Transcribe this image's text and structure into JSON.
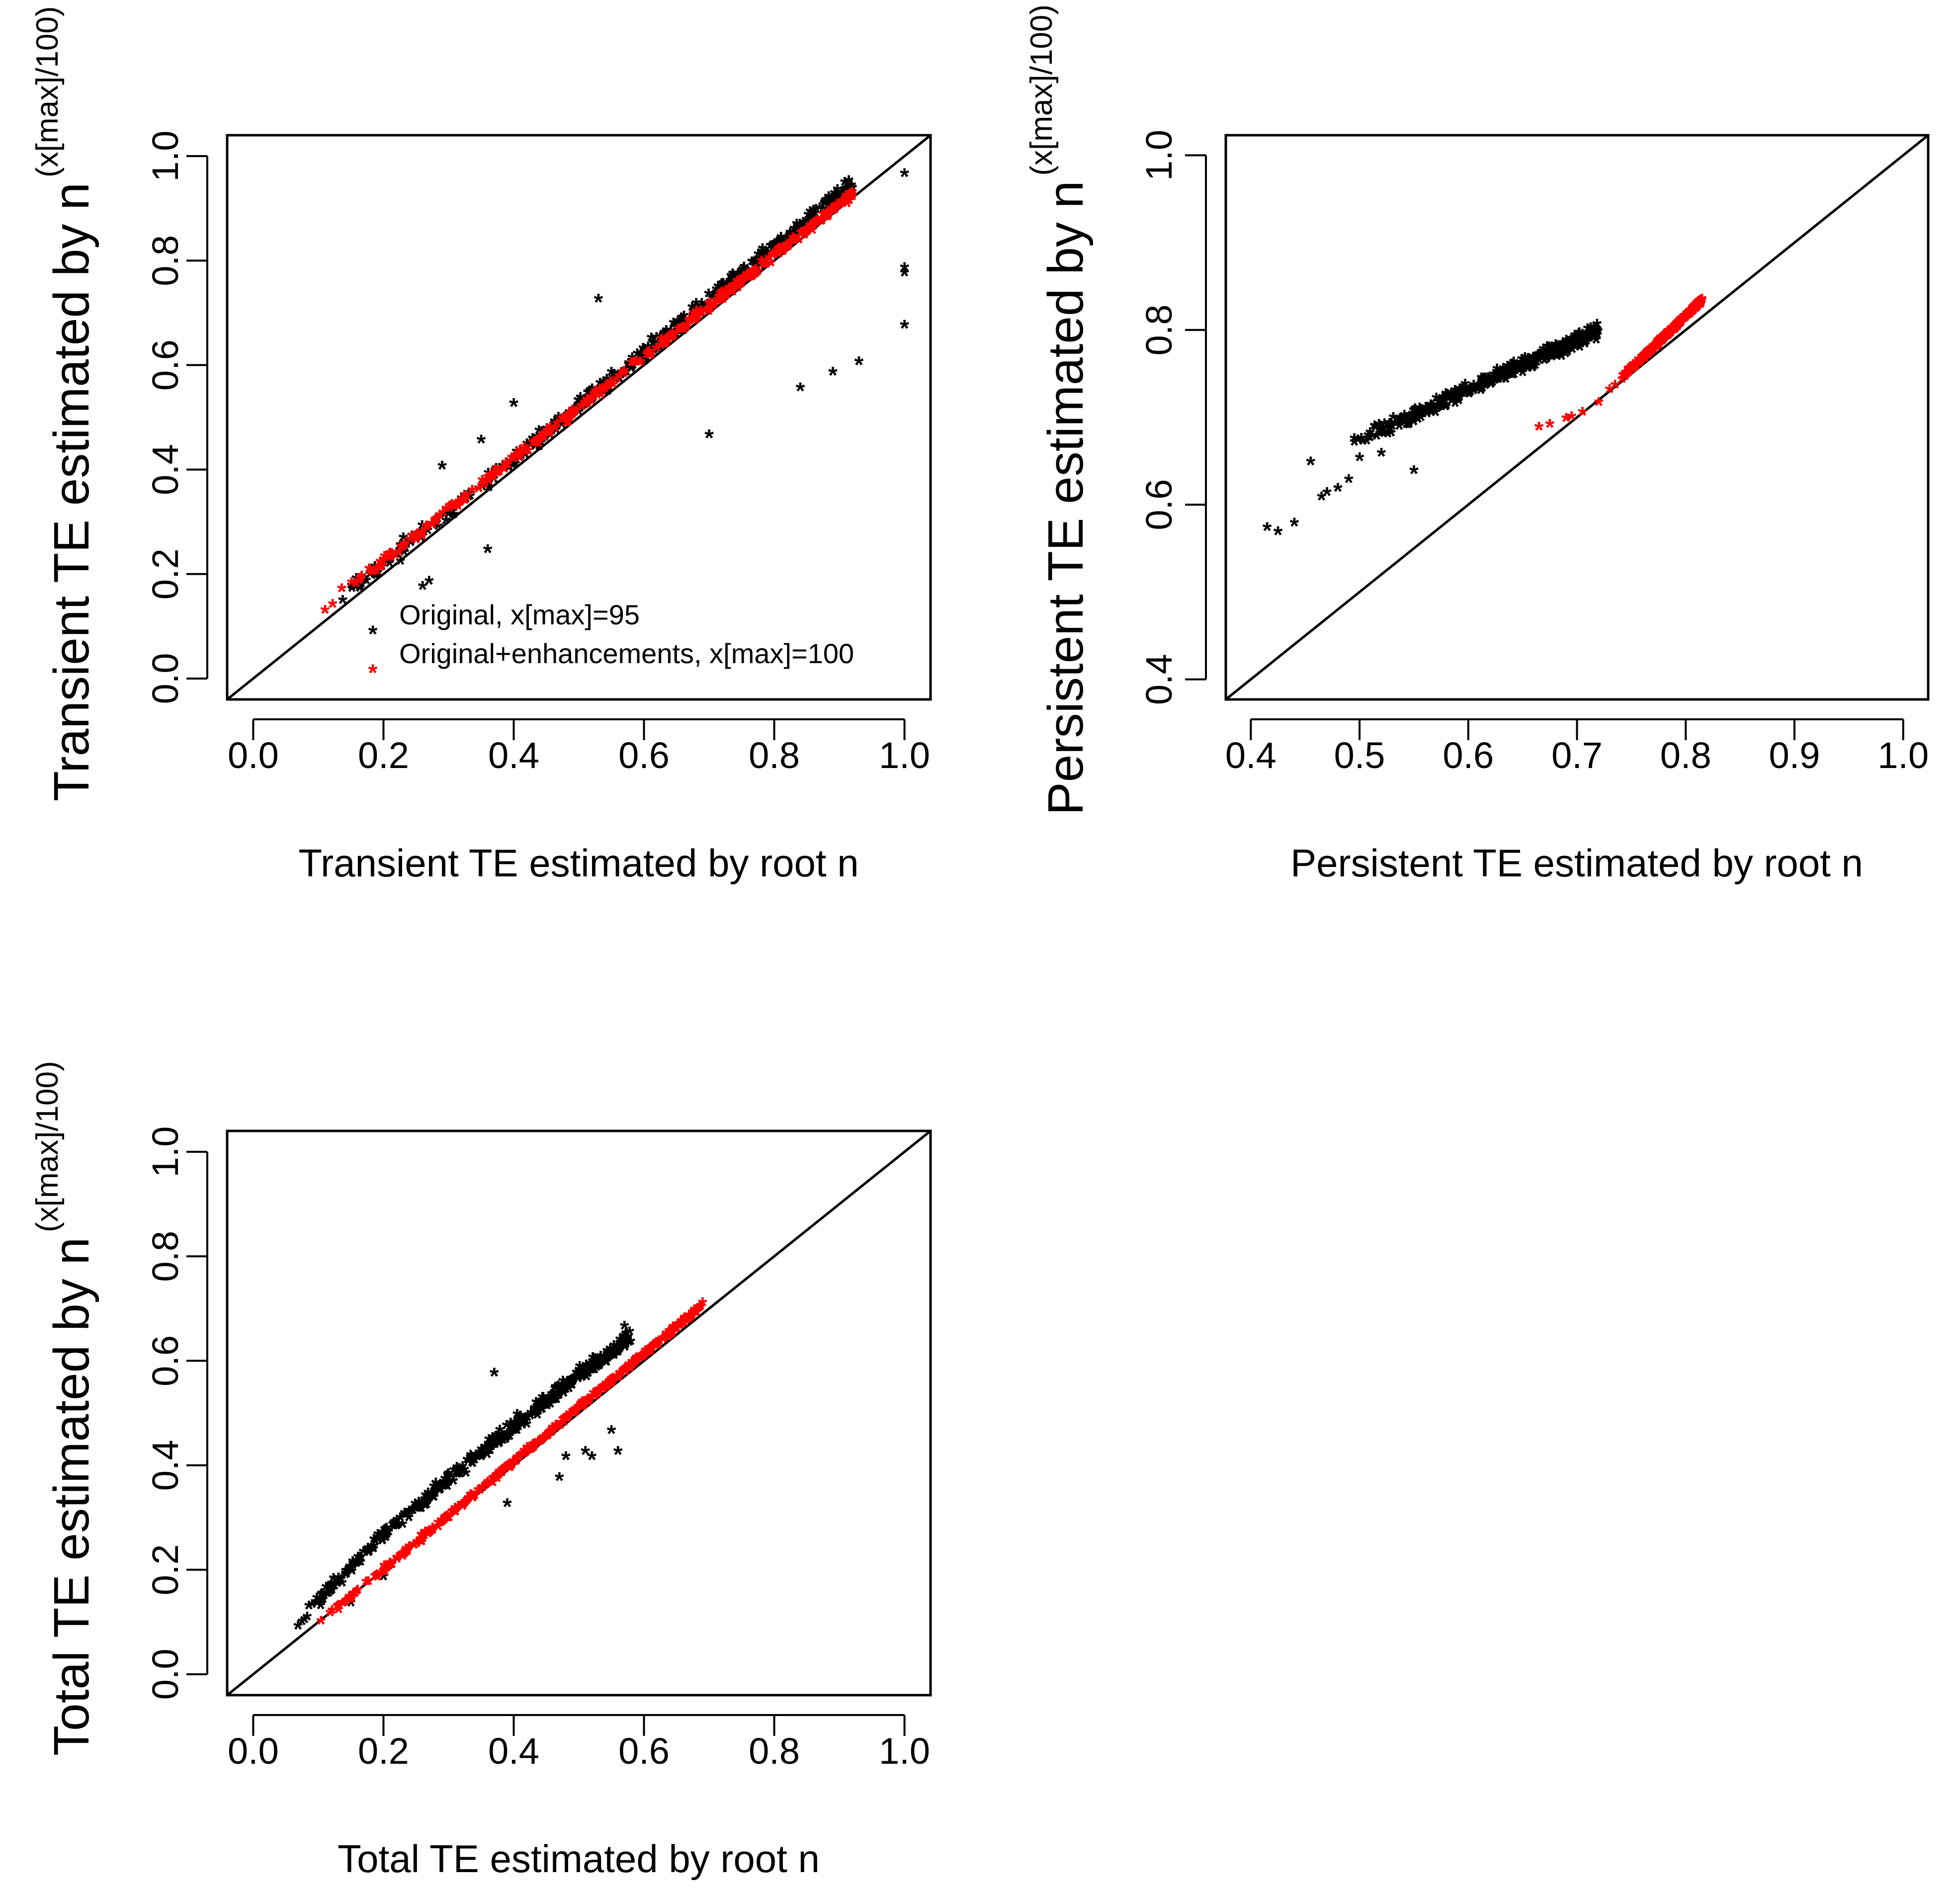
{
  "figure": {
    "colors": {
      "original": "#000000",
      "enhanced": "#ff0000",
      "axes": "#000000",
      "background": "#ffffff"
    }
  },
  "chart_data": [
    {
      "id": "transient",
      "type": "scatter",
      "title": "",
      "xlabel": "Transient TE estimated by root n",
      "ylabel": {
        "main": "Transient TE estimated by n",
        "superscript": "(x[max]/100)"
      },
      "xlim": [
        -0.04,
        1.04
      ],
      "ylim": [
        -0.04,
        1.04
      ],
      "xticks": [
        "0.0",
        "0.2",
        "0.4",
        "0.6",
        "0.8",
        "1.0"
      ],
      "yticks": [
        "0.0",
        "0.2",
        "0.4",
        "0.6",
        "0.8",
        "1.0"
      ],
      "grid": false,
      "marker": "*",
      "reference_line": "y = x",
      "legend": {
        "placement": "bottom-right",
        "entries": [
          {
            "symbol": "*",
            "color": "#000000",
            "label": "Original, x[max]=95"
          },
          {
            "symbol": "*",
            "color": "#ff0000",
            "label": "Original+enhancements, x[max]=100"
          }
        ]
      },
      "series": [
        {
          "name": "Original, x[max]=95",
          "color": "#000000",
          "trend": {
            "x_range": [
              0.1,
              0.92
            ],
            "offset_start": 0.01,
            "offset_end": 0.02,
            "spread": 0.022
          },
          "outliers": [
            [
              0.53,
              0.72
            ],
            [
              0.7,
              0.46
            ],
            [
              0.84,
              0.55
            ],
            [
              0.89,
              0.58
            ],
            [
              0.93,
              0.6
            ],
            [
              1.0,
              0.96
            ],
            [
              1.0,
              0.78
            ],
            [
              1.0,
              0.77
            ],
            [
              1.0,
              0.67
            ],
            [
              0.36,
              0.24
            ],
            [
              0.35,
              0.45
            ],
            [
              0.4,
              0.52
            ],
            [
              0.27,
              0.18
            ],
            [
              0.26,
              0.17
            ],
            [
              0.29,
              0.4
            ],
            [
              0.55,
              0.58
            ]
          ]
        },
        {
          "name": "Original+enhancements, x[max]=100",
          "color": "#ff0000",
          "trend": {
            "x_range": [
              0.11,
              0.92
            ],
            "offset_start": 0.02,
            "offset_end": 0.0,
            "spread": 0.012
          }
        }
      ]
    },
    {
      "id": "persistent",
      "type": "scatter",
      "title": "",
      "xlabel": "Persistent TE estimated by root n",
      "ylabel": {
        "main": "Persistent TE estimated by n",
        "superscript": "(x[max]/100)"
      },
      "xlim": [
        0.377,
        1.023
      ],
      "ylim": [
        0.377,
        1.023
      ],
      "xticks": [
        "0.4",
        "0.5",
        "0.6",
        "0.7",
        "0.8",
        "0.9",
        "1.0"
      ],
      "yticks": [
        "0.4",
        "0.6",
        "0.8",
        "1.0"
      ],
      "grid": false,
      "marker": "*",
      "reference_line": "y = x",
      "series": [
        {
          "name": "Original, x[max]=95",
          "color": "#000000",
          "trend": {
            "x_range": [
              0.49,
              0.72
            ],
            "y_range": [
              0.665,
              0.795
            ],
            "spread": 0.012
          },
          "outliers": [
            [
              0.415,
              0.57
            ],
            [
              0.425,
              0.565
            ],
            [
              0.44,
              0.575
            ],
            [
              0.455,
              0.645
            ],
            [
              0.465,
              0.605
            ],
            [
              0.47,
              0.61
            ],
            [
              0.48,
              0.615
            ],
            [
              0.49,
              0.625
            ],
            [
              0.5,
              0.65
            ],
            [
              0.52,
              0.655
            ],
            [
              0.55,
              0.635
            ]
          ]
        },
        {
          "name": "Original+enhancements, x[max]=100",
          "color": "#ff0000",
          "trend": {
            "x_range": [
              0.74,
              0.815
            ],
            "y_range": [
              0.74,
              0.83
            ],
            "spread": 0.004
          },
          "outliers": [
            [
              0.665,
              0.685
            ],
            [
              0.675,
              0.688
            ],
            [
              0.69,
              0.695
            ],
            [
              0.695,
              0.697
            ],
            [
              0.705,
              0.702
            ],
            [
              0.72,
              0.713
            ],
            [
              0.73,
              0.728
            ],
            [
              0.735,
              0.733
            ]
          ]
        }
      ]
    },
    {
      "id": "total",
      "type": "scatter",
      "title": "",
      "xlabel": "Total TE estimated by root n",
      "ylabel": {
        "main": "Total TE estimated by n",
        "superscript": "(x[max]/100)"
      },
      "xlim": [
        -0.04,
        1.04
      ],
      "ylim": [
        -0.04,
        1.04
      ],
      "xticks": [
        "0.0",
        "0.2",
        "0.4",
        "0.6",
        "0.8",
        "1.0"
      ],
      "yticks": [
        "0.0",
        "0.2",
        "0.4",
        "0.6",
        "0.8",
        "1.0"
      ],
      "grid": false,
      "marker": "*",
      "reference_line": "y = x",
      "series": [
        {
          "name": "Original, x[max]=95",
          "color": "#000000",
          "trend": {
            "x_range": [
              0.06,
              0.58
            ],
            "y_range": [
              0.07,
              0.64
            ],
            "curve": "concave",
            "spread": 0.02
          },
          "outliers": [
            [
              0.37,
              0.57
            ],
            [
              0.57,
              0.66
            ],
            [
              0.56,
              0.61
            ],
            [
              0.55,
              0.46
            ],
            [
              0.56,
              0.42
            ],
            [
              0.51,
              0.42
            ],
            [
              0.52,
              0.41
            ],
            [
              0.48,
              0.41
            ],
            [
              0.47,
              0.37
            ],
            [
              0.39,
              0.32
            ],
            [
              0.2,
              0.18
            ],
            [
              0.15,
              0.13
            ],
            [
              0.33,
              0.33
            ]
          ]
        },
        {
          "name": "Original+enhancements, x[max]=100",
          "color": "#ff0000",
          "trend": {
            "x_range": [
              0.09,
              0.69
            ],
            "y_range": [
              0.08,
              0.7
            ],
            "spread": 0.008
          }
        }
      ]
    }
  ]
}
